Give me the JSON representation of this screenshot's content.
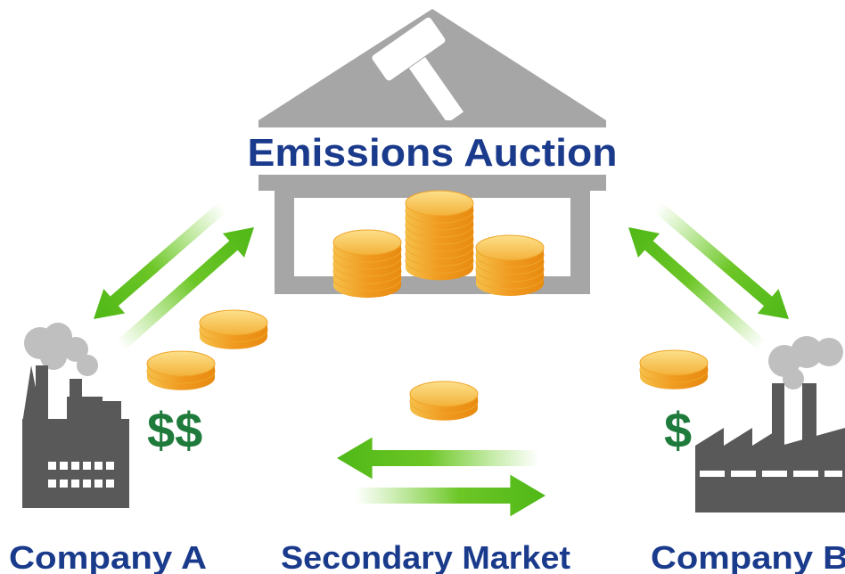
{
  "building": {
    "title": "Emissions Auction"
  },
  "company_a": {
    "label": "Company A",
    "money": "$$"
  },
  "company_b": {
    "label": "Company B",
    "money": "$"
  },
  "market": {
    "label": "Secondary Market"
  }
}
